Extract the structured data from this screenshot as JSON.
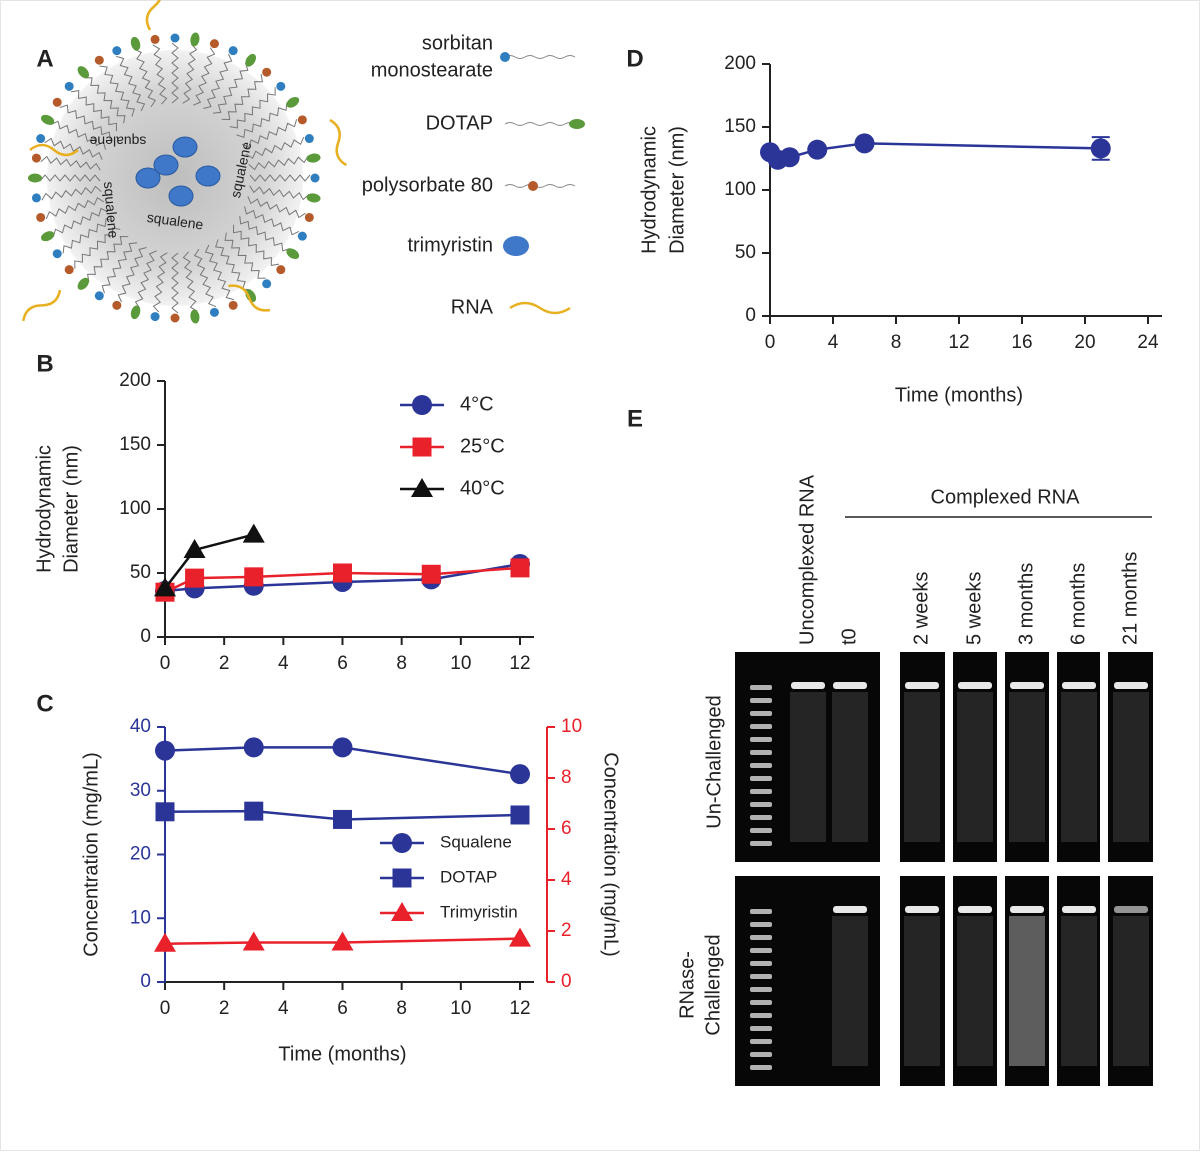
{
  "panel_labels": [
    "A",
    "B",
    "C",
    "D",
    "E"
  ],
  "diagram": {
    "core_labels": [
      "squalene",
      "squalene",
      "squalene",
      "squalene"
    ],
    "legend": [
      {
        "lines": [
          "sorbitan",
          "monostearate"
        ]
      },
      {
        "lines": [
          "DOTAP"
        ]
      },
      {
        "lines": [
          "polysorbate 80"
        ]
      },
      {
        "lines": [
          "trimyristin"
        ]
      },
      {
        "lines": [
          "RNA"
        ]
      }
    ]
  },
  "chart_data": [
    {
      "type": "line",
      "ylabel": [
        "Hydrodynamic",
        "Diameter (nm)"
      ],
      "xlim": [
        0,
        12
      ],
      "xticks": [
        0,
        2,
        4,
        6,
        8,
        10,
        12
      ],
      "ylim": [
        0,
        200
      ],
      "yticks": [
        0,
        50,
        100,
        150,
        200
      ],
      "legend": "upper right",
      "series": [
        {
          "name": "4°C",
          "color": "#2b3598",
          "marker": "circle",
          "x": [
            0,
            1,
            3,
            6,
            9,
            12
          ],
          "values": [
            36,
            38,
            40,
            43,
            45,
            57
          ]
        },
        {
          "name": "25°C",
          "color": "#e8212b",
          "marker": "square",
          "x": [
            0,
            1,
            3,
            6,
            9,
            12
          ],
          "values": [
            35,
            46,
            47,
            50,
            49,
            54
          ]
        },
        {
          "name": "40°C",
          "color": "#111111",
          "marker": "triangle",
          "x": [
            0,
            1,
            3
          ],
          "values": [
            38,
            68,
            80
          ]
        }
      ]
    },
    {
      "type": "line",
      "xlabel": "Time (months)",
      "ylabel": [
        "Concentration (mg/mL)"
      ],
      "y2label": "Concentration (mg/mL)",
      "y_color": "#2b3598",
      "y2_color": "#e8212b",
      "xlim": [
        0,
        12
      ],
      "xticks": [
        0,
        2,
        4,
        6,
        8,
        10,
        12
      ],
      "ylim": [
        0,
        40
      ],
      "yticks": [
        0,
        10,
        20,
        30,
        40
      ],
      "y2lim": [
        0,
        10
      ],
      "y2ticks": [
        0,
        2,
        4,
        6,
        8,
        10
      ],
      "legend": "center right",
      "series": [
        {
          "name": "Squalene",
          "color": "#2b3598",
          "marker": "circle",
          "x": [
            0,
            3,
            6,
            12
          ],
          "values": [
            36.3,
            36.8,
            36.8,
            32.6
          ]
        },
        {
          "name": "DOTAP",
          "color": "#2b3598",
          "marker": "square",
          "x": [
            0,
            3,
            6,
            12
          ],
          "values": [
            26.7,
            26.8,
            25.5,
            26.2
          ]
        },
        {
          "name": "Trimyristin",
          "color": "#e8212b",
          "marker": "triangle",
          "axis": "y2",
          "x": [
            0,
            3,
            6,
            12
          ],
          "values": [
            1.5,
            1.55,
            1.55,
            1.7
          ]
        }
      ]
    },
    {
      "type": "line",
      "xlabel": "Time (months)",
      "ylabel": [
        "Hydrodynamic",
        "Diameter (nm)"
      ],
      "xlim": [
        0,
        24
      ],
      "xticks": [
        0,
        4,
        8,
        12,
        16,
        20,
        24
      ],
      "ylim": [
        0,
        200
      ],
      "yticks": [
        0,
        50,
        100,
        150,
        200
      ],
      "series": [
        {
          "color": "#2b3598",
          "marker": "circle",
          "x": [
            0,
            0.5,
            1.25,
            3,
            6,
            21
          ],
          "values": [
            130,
            124,
            126,
            132,
            137,
            133
          ],
          "errors": [
            null,
            null,
            null,
            null,
            null,
            9
          ]
        }
      ]
    }
  ],
  "gel": {
    "top_label": "Uncomplexed RNA",
    "group_label": "Complexed RNA",
    "lanes": [
      "t0",
      "2 weeks",
      "5 weeks",
      "3 months",
      "6 months",
      "21 months"
    ],
    "rows": [
      [
        "Un-Challenged"
      ],
      [
        "RNase-",
        "Challenged"
      ]
    ]
  }
}
